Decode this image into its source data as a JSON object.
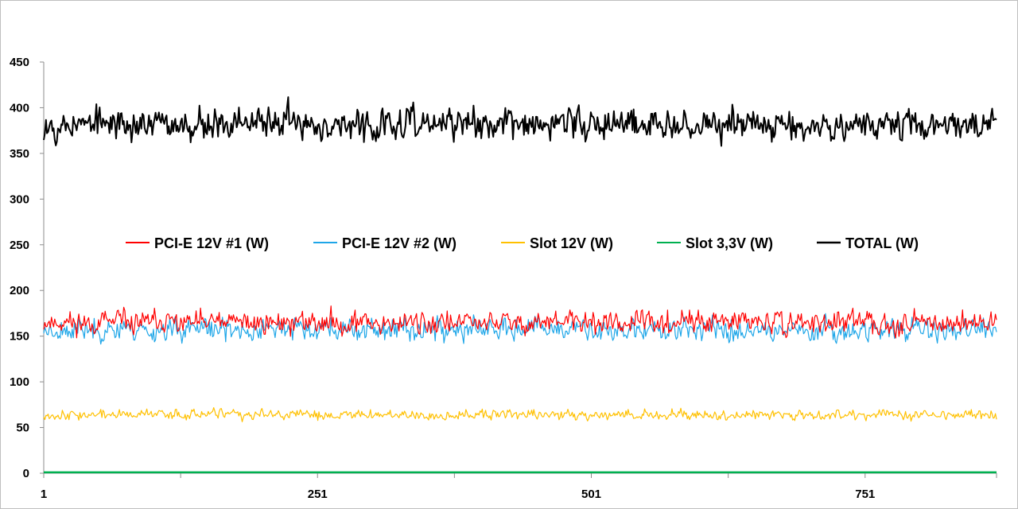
{
  "chart_data": {
    "type": "line",
    "title": "",
    "xlabel": "",
    "ylabel": "",
    "ylim": [
      0,
      450
    ],
    "yticks": [
      0,
      50,
      100,
      150,
      200,
      250,
      300,
      350,
      400,
      450
    ],
    "xlim": [
      1,
      871
    ],
    "xtick_labels": [
      1,
      251,
      501,
      751
    ],
    "minor_xticks": [
      126,
      376,
      626
    ],
    "legend_position": "middle",
    "grid": false,
    "series": [
      {
        "name": "PCI-E 12V #1 (W)",
        "color": "#ff0000",
        "mean": 165,
        "noise": 8,
        "min": 148,
        "max": 190,
        "seed": 11
      },
      {
        "name": "PCI-E 12V #2 (W)",
        "color": "#1ea6e8",
        "mean": 157,
        "noise": 8,
        "min": 136,
        "max": 178,
        "seed": 23
      },
      {
        "name": "Slot 12V (W)",
        "color": "#ffc000",
        "mean": 64,
        "noise": 3.5,
        "min": 55,
        "max": 74,
        "seed": 37
      },
      {
        "name": "Slot 3,3V (W)",
        "color": "#00b050",
        "mean": 1,
        "noise": 0,
        "min": 0,
        "max": 2,
        "seed": 41
      },
      {
        "name": "TOTAL (W)",
        "color": "#000000",
        "mean": 382,
        "noise": 11,
        "min": 350,
        "max": 422,
        "seed": 53
      }
    ]
  }
}
